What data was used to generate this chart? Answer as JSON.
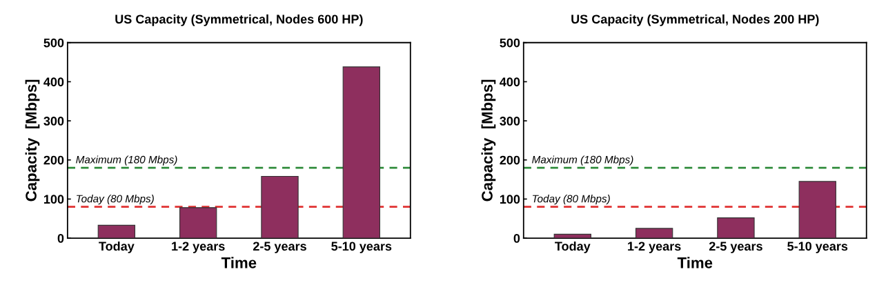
{
  "chart_data": [
    {
      "type": "bar",
      "title": "US Capacity (Symmetrical, Nodes 600 HP)",
      "xlabel": "Time",
      "ylabel": "Capacity  [Mbps]",
      "categories": [
        "Today",
        "1-2 years",
        "2-5 years",
        "5-10 years"
      ],
      "values": [
        33,
        78,
        158,
        438
      ],
      "color": "#8e2f5e",
      "ylim": [
        0,
        500
      ],
      "yticks": [
        0,
        100,
        200,
        300,
        400,
        500
      ],
      "ref_lines": [
        {
          "axis": "y",
          "value": 180,
          "label": "Maximum (180 Mbps)",
          "color": "#2e8b3a",
          "line_style": "dashed"
        },
        {
          "axis": "y",
          "value": 80,
          "label": "Today (80 Mbps)",
          "color": "#e03030",
          "line_style": "dashed"
        }
      ]
    },
    {
      "type": "bar",
      "title": "US Capacity (Symmetrical, Nodes 200 HP)",
      "xlabel": "Time",
      "ylabel": "Capacity  [Mbps]",
      "categories": [
        "Today",
        "1-2 years",
        "2-5 years",
        "5-10 years"
      ],
      "values": [
        10,
        25,
        52,
        145
      ],
      "color": "#8e2f5e",
      "ylim": [
        0,
        500
      ],
      "yticks": [
        0,
        100,
        200,
        300,
        400,
        500
      ],
      "ref_lines": [
        {
          "axis": "y",
          "value": 180,
          "label": "Maximum (180 Mbps)",
          "color": "#2e8b3a",
          "line_style": "dashed"
        },
        {
          "axis": "y",
          "value": 80,
          "label": "Today (80 Mbps)",
          "color": "#e03030",
          "line_style": "dashed"
        }
      ]
    }
  ]
}
